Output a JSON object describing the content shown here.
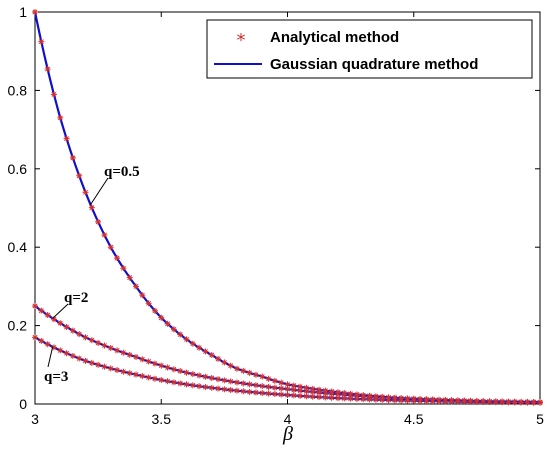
{
  "chart_data": {
    "type": "line",
    "xlabel": "β",
    "ylabel": "",
    "title": "",
    "xlim": [
      3,
      5
    ],
    "ylim": [
      0,
      1
    ],
    "xticks": [
      "3",
      "3.5",
      "4",
      "4.5",
      "5"
    ],
    "yticks": [
      "0",
      "0.2",
      "0.4",
      "0.6",
      "0.8",
      "1"
    ],
    "legend_position": "top-right",
    "legend": {
      "analytical": "Analytical method",
      "gaussian": "Gaussian quadrature method"
    },
    "colors": {
      "analytical": "#d03030",
      "gaussian": "#1010cc"
    },
    "series": [
      {
        "label": "q=0.5",
        "x": [
          3.0,
          3.1,
          3.2,
          3.3,
          3.4,
          3.5,
          3.6,
          3.7,
          3.8,
          3.9,
          4.0,
          4.2,
          4.4,
          4.6,
          4.8,
          5.0
        ],
        "y": [
          1.0,
          0.73,
          0.54,
          0.4,
          0.3,
          0.22,
          0.165,
          0.125,
          0.09,
          0.07,
          0.05,
          0.03,
          0.017,
          0.01,
          0.006,
          0.004
        ]
      },
      {
        "label": "q=2",
        "x": [
          3.0,
          3.2,
          3.4,
          3.6,
          3.8,
          4.0,
          4.2,
          4.4,
          4.6,
          4.8,
          5.0
        ],
        "y": [
          0.25,
          0.17,
          0.12,
          0.08,
          0.055,
          0.038,
          0.025,
          0.016,
          0.011,
          0.007,
          0.005
        ]
      },
      {
        "label": "q=3",
        "x": [
          3.0,
          3.2,
          3.4,
          3.6,
          3.8,
          4.0,
          4.2,
          4.4,
          4.6,
          4.8,
          5.0
        ],
        "y": [
          0.17,
          0.11,
          0.075,
          0.05,
          0.034,
          0.023,
          0.015,
          0.01,
          0.007,
          0.005,
          0.003
        ]
      }
    ]
  }
}
